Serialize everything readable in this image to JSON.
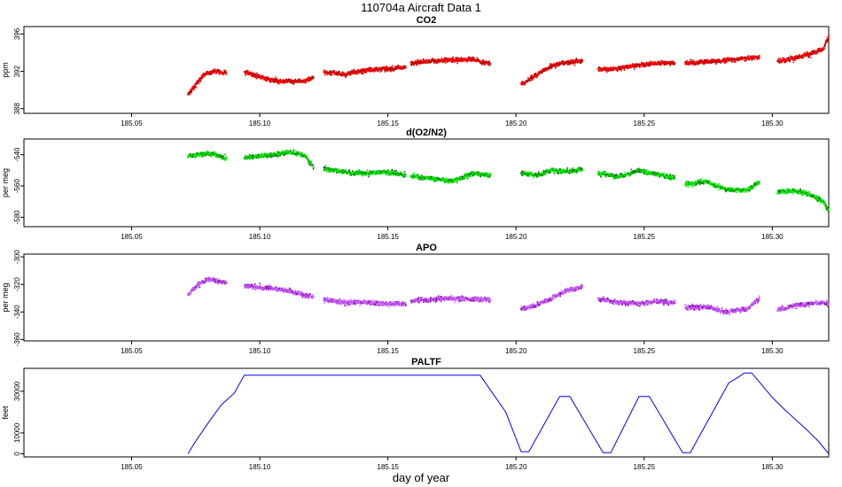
{
  "figure": {
    "title": "110704a   Aircraft Data 1",
    "xlabel": "day of year"
  },
  "chart_data": [
    {
      "type": "scatter",
      "title": "CO2",
      "ylabel": "ppm",
      "xlim": [
        185.008,
        185.322
      ],
      "ylim": [
        387.5,
        396.8
      ],
      "xticks": [
        185.05,
        185.1,
        185.15,
        185.2,
        185.25,
        185.3
      ],
      "yticks": [
        388,
        392,
        396
      ],
      "color": "#ff0000",
      "dark_color": "#8b0000",
      "series": [
        {
          "name": "seg1",
          "x": [
            185.072,
            185.075,
            185.078,
            185.081,
            185.084,
            185.087
          ],
          "y": [
            389.5,
            390.5,
            391.6,
            391.9,
            392.0,
            391.8
          ]
        },
        {
          "name": "seg2",
          "x": [
            185.094,
            185.1,
            185.106,
            185.112,
            185.118,
            185.121
          ],
          "y": [
            392.0,
            391.4,
            391.0,
            390.9,
            391.0,
            391.4
          ]
        },
        {
          "name": "seg3",
          "x": [
            185.125,
            185.133,
            185.141,
            185.149,
            185.157
          ],
          "y": [
            391.9,
            391.7,
            392.1,
            392.3,
            392.4
          ]
        },
        {
          "name": "seg4",
          "x": [
            185.159,
            185.167,
            185.175,
            185.183,
            185.19
          ],
          "y": [
            392.9,
            393.1,
            393.2,
            393.3,
            392.8
          ]
        },
        {
          "name": "seg5",
          "x": [
            185.202,
            185.208,
            185.214,
            185.22,
            185.226
          ],
          "y": [
            390.6,
            391.6,
            392.6,
            393.0,
            393.1
          ]
        },
        {
          "name": "seg6",
          "x": [
            185.232,
            185.24,
            185.248,
            185.256,
            185.262
          ],
          "y": [
            392.2,
            392.3,
            392.7,
            392.9,
            392.9
          ]
        },
        {
          "name": "seg7",
          "x": [
            185.266,
            185.274,
            185.282,
            185.29,
            185.295
          ],
          "y": [
            392.9,
            393.0,
            393.2,
            393.4,
            393.5
          ]
        },
        {
          "name": "seg8",
          "x": [
            185.302,
            185.308,
            185.314,
            185.32,
            185.322
          ],
          "y": [
            393.1,
            393.4,
            393.8,
            394.4,
            395.8
          ]
        }
      ]
    },
    {
      "type": "scatter",
      "title": "d(O2/N2)",
      "ylabel": "per meg",
      "xlim": [
        185.008,
        185.322
      ],
      "ylim": [
        -586,
        -530
      ],
      "xticks": [
        185.05,
        185.1,
        185.15,
        185.2,
        185.25,
        185.3
      ],
      "yticks": [
        -540,
        -560,
        -580
      ],
      "color": "#00ee00",
      "dark_color": "#005500",
      "series": [
        {
          "name": "seg1",
          "x": [
            185.072,
            185.076,
            185.08,
            185.084,
            185.087
          ],
          "y": [
            -541,
            -540,
            -539,
            -541,
            -542
          ]
        },
        {
          "name": "seg2",
          "x": [
            185.094,
            185.1,
            185.106,
            185.112,
            185.118,
            185.121
          ],
          "y": [
            -542,
            -541,
            -540,
            -538,
            -541,
            -548
          ]
        },
        {
          "name": "seg3",
          "x": [
            185.125,
            185.133,
            185.141,
            185.149,
            185.157
          ],
          "y": [
            -549,
            -551,
            -552,
            -551,
            -553
          ]
        },
        {
          "name": "seg4",
          "x": [
            185.159,
            185.167,
            185.175,
            185.183,
            185.19
          ],
          "y": [
            -554,
            -555,
            -557,
            -552,
            -553
          ]
        },
        {
          "name": "seg5",
          "x": [
            185.202,
            185.208,
            185.214,
            185.22,
            185.226
          ],
          "y": [
            -552,
            -553,
            -550,
            -551,
            -549
          ]
        },
        {
          "name": "seg6",
          "x": [
            185.232,
            185.24,
            185.248,
            185.256,
            185.262
          ],
          "y": [
            -552,
            -554,
            -550,
            -553,
            -555
          ]
        },
        {
          "name": "seg7",
          "x": [
            185.266,
            185.274,
            185.282,
            185.29,
            185.295
          ],
          "y": [
            -559,
            -557,
            -562,
            -563,
            -557
          ]
        },
        {
          "name": "seg8",
          "x": [
            185.302,
            185.308,
            185.314,
            185.32,
            185.322
          ],
          "y": [
            -564,
            -563,
            -565,
            -570,
            -576
          ]
        }
      ]
    },
    {
      "type": "scatter",
      "title": "APO",
      "ylabel": "per meg",
      "xlim": [
        185.008,
        185.322
      ],
      "ylim": [
        -361,
        -298
      ],
      "xticks": [
        185.05,
        185.1,
        185.15,
        185.2,
        185.25,
        185.3
      ],
      "yticks": [
        -300,
        -320,
        -340,
        -360
      ],
      "color": "#cc66ff",
      "dark_color": "#8800aa",
      "series": [
        {
          "name": "seg1",
          "x": [
            185.072,
            185.076,
            185.08,
            185.084,
            185.087
          ],
          "y": [
            -328,
            -320,
            -316,
            -318,
            -319
          ]
        },
        {
          "name": "seg2",
          "x": [
            185.094,
            185.1,
            185.106,
            185.112,
            185.118,
            185.121
          ],
          "y": [
            -321,
            -322,
            -323,
            -325,
            -328,
            -329
          ]
        },
        {
          "name": "seg3",
          "x": [
            185.125,
            185.133,
            185.141,
            185.149,
            185.157
          ],
          "y": [
            -331,
            -333,
            -333,
            -334,
            -334
          ]
        },
        {
          "name": "seg4",
          "x": [
            185.159,
            185.167,
            185.175,
            185.183,
            185.19
          ],
          "y": [
            -332,
            -331,
            -330,
            -331,
            -331
          ]
        },
        {
          "name": "seg5",
          "x": [
            185.202,
            185.208,
            185.214,
            185.22,
            185.226
          ],
          "y": [
            -338,
            -335,
            -330,
            -324,
            -322
          ]
        },
        {
          "name": "seg6",
          "x": [
            185.232,
            185.24,
            185.248,
            185.256,
            185.262
          ],
          "y": [
            -331,
            -333,
            -334,
            -332,
            -333
          ]
        },
        {
          "name": "seg7",
          "x": [
            185.266,
            185.274,
            185.282,
            185.29,
            185.295
          ],
          "y": [
            -337,
            -336,
            -340,
            -338,
            -330
          ]
        },
        {
          "name": "seg8",
          "x": [
            185.302,
            185.308,
            185.314,
            185.32,
            185.322
          ],
          "y": [
            -338,
            -336,
            -334,
            -333,
            -335
          ]
        }
      ]
    },
    {
      "type": "line",
      "title": "PALTF",
      "ylabel": "feet",
      "xlim": [
        185.008,
        185.322
      ],
      "ylim": [
        -1500,
        41000
      ],
      "xticks": [
        185.05,
        185.1,
        185.15,
        185.2,
        185.25,
        185.3
      ],
      "yticks": [
        0,
        10000,
        30000
      ],
      "color": "#0000ff",
      "x": [
        185.072,
        185.075,
        185.08,
        185.085,
        185.09,
        185.094,
        185.186,
        185.196,
        185.202,
        185.205,
        185.217,
        185.221,
        185.234,
        185.237,
        185.248,
        185.252,
        185.265,
        185.268,
        185.283,
        185.287,
        185.289,
        185.292,
        185.3,
        185.305,
        185.313,
        185.318,
        185.322
      ],
      "y": [
        0,
        6000,
        15000,
        23500,
        29000,
        37700,
        37700,
        20000,
        1000,
        1000,
        27500,
        27500,
        500,
        500,
        27500,
        27500,
        500,
        500,
        34000,
        37000,
        38800,
        38800,
        27000,
        21000,
        12000,
        6000,
        0
      ]
    }
  ]
}
